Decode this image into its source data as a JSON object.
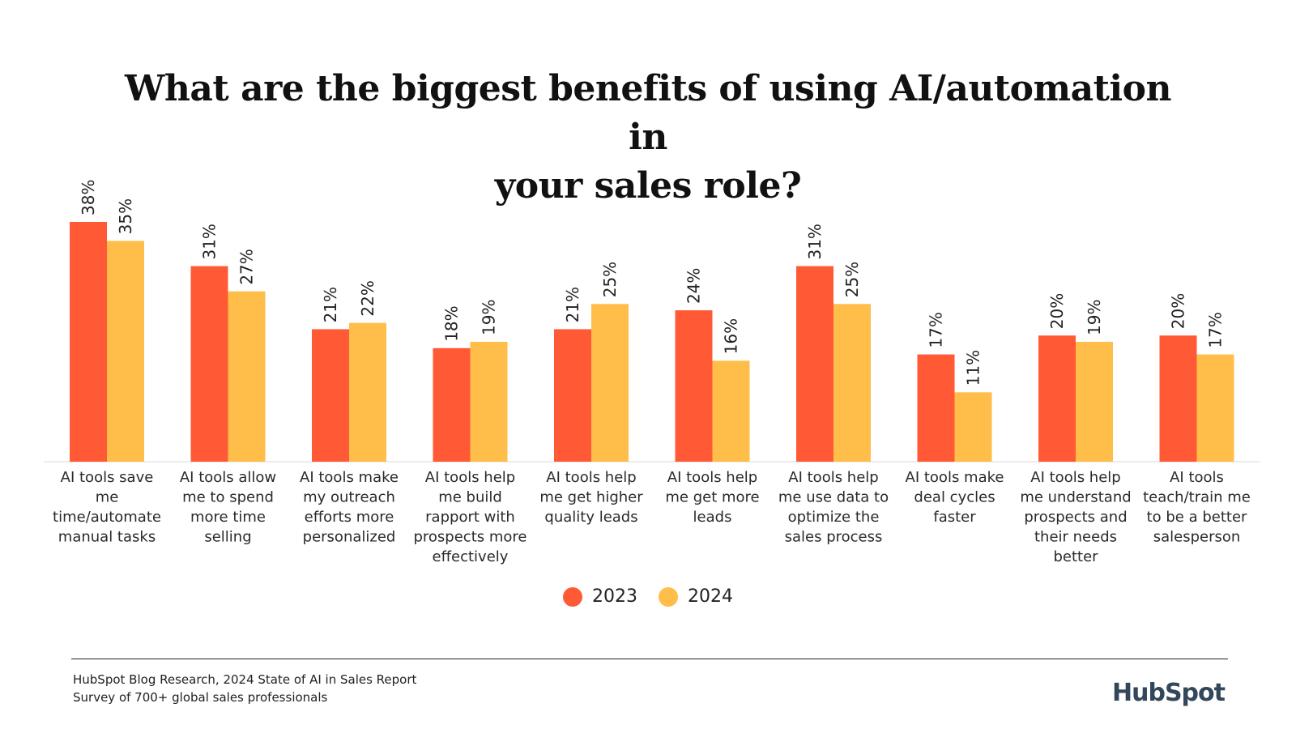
{
  "chart_data": {
    "type": "bar",
    "title_lines": [
      "What are the biggest benefits of using AI/automation in",
      "your sales role?"
    ],
    "categories": [
      [
        "AI tools save",
        "me",
        "time/automate",
        "manual tasks"
      ],
      [
        "AI tools allow",
        "me to spend",
        "more time",
        "selling"
      ],
      [
        "AI tools make",
        "my outreach",
        "efforts more",
        "personalized"
      ],
      [
        "AI tools help",
        "me build",
        "rapport with",
        "prospects more",
        "effectively"
      ],
      [
        "AI tools help",
        "me get higher",
        "quality leads"
      ],
      [
        "AI tools help",
        "me get more",
        "leads"
      ],
      [
        "AI tools help",
        "me use data to",
        "optimize the",
        "sales process"
      ],
      [
        "AI tools make",
        "deal cycles",
        "faster"
      ],
      [
        "AI tools help",
        "me understand",
        "prospects and",
        "their needs",
        "better"
      ],
      [
        "AI tools",
        "teach/train me",
        "to be a better",
        "salesperson"
      ]
    ],
    "series": [
      {
        "name": "2023",
        "color": "#ff5a35",
        "values": [
          38,
          31,
          21,
          18,
          21,
          24,
          31,
          17,
          20,
          20
        ]
      },
      {
        "name": "2024",
        "color": "#ffbd4a",
        "values": [
          35,
          27,
          22,
          19,
          25,
          16,
          25,
          11,
          19,
          17
        ]
      }
    ],
    "value_suffix": "%",
    "ylim": [
      0,
      38
    ],
    "grid": false,
    "legend_position": "bottom-center"
  },
  "footer": {
    "source_line1": "HubSpot Blog Research, 2024 State of AI in Sales Report",
    "source_line2": "Survey of 700+ global sales professionals",
    "brand": "HubSpot"
  }
}
